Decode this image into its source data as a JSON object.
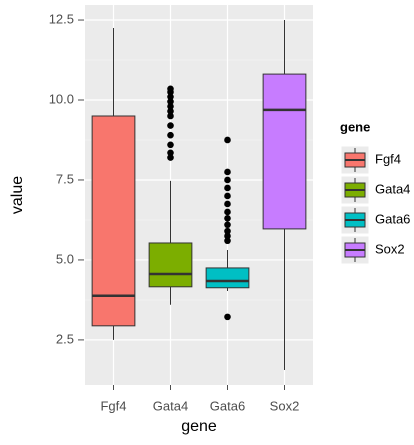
{
  "chart_data": {
    "type": "box",
    "x_label": "gene",
    "y_label": "value",
    "legend_title": "gene",
    "categories": [
      "Fgf4",
      "Gata4",
      "Gata6",
      "Sox2"
    ],
    "colors": [
      "#F8766D",
      "#7CAE00",
      "#00BFC4",
      "#C77CFF"
    ],
    "boxes": [
      {
        "whisker_low": 2.5,
        "q1": 2.94,
        "median": 3.88,
        "q3": 9.5,
        "whisker_high": 12.25,
        "outliers": []
      },
      {
        "whisker_low": 3.6,
        "q1": 4.16,
        "median": 4.56,
        "q3": 5.53,
        "whisker_high": 7.47,
        "outliers": [
          8.2,
          8.35,
          8.6,
          8.9,
          9.2,
          9.5,
          9.65,
          9.8,
          9.95,
          10.1,
          10.25,
          10.35
        ]
      },
      {
        "whisker_low": 4.03,
        "q1": 4.13,
        "median": 4.34,
        "q3": 4.75,
        "whisker_high": 5.31,
        "outliers": [
          3.22,
          5.6,
          5.75,
          5.9,
          6.1,
          6.3,
          6.5,
          6.75,
          7.0,
          7.25,
          7.5,
          7.75,
          8.75
        ]
      },
      {
        "whisker_low": 1.56,
        "q1": 5.97,
        "median": 9.69,
        "q3": 10.81,
        "whisker_high": 12.5,
        "outliers": []
      }
    ],
    "ylim": [
      1.09,
      12.97
    ],
    "yticks": [
      2.5,
      {
        "value": 5,
        "label": "5.0"
      },
      7.5,
      {
        "value": 10,
        "label": "10.0"
      },
      12.5
    ],
    "grid": true
  }
}
